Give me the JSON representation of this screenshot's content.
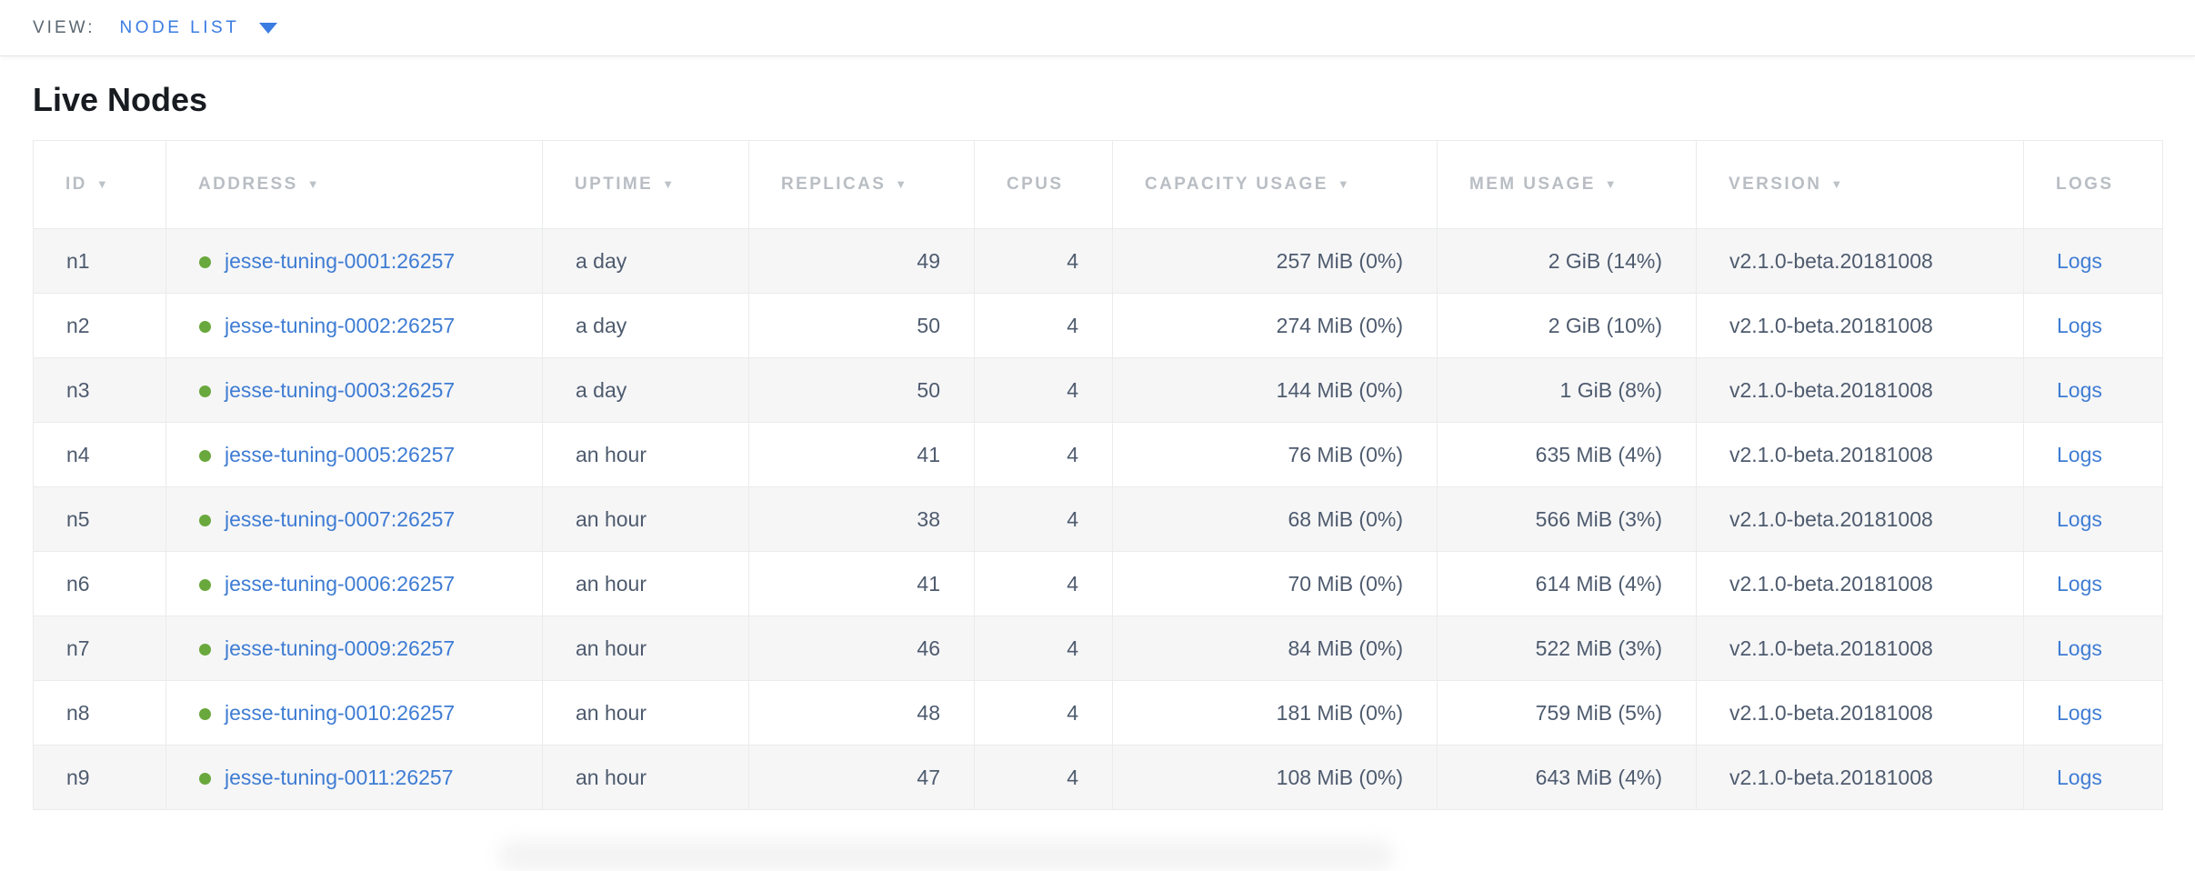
{
  "view_bar": {
    "label": "VIEW:",
    "selected_view": "NODE LIST"
  },
  "page": {
    "heading": "Live Nodes"
  },
  "colors": {
    "accent_blue": "#3a7ce2",
    "link_blue": "#3e7cd3",
    "live_dot_green": "#69a83c",
    "header_text": "#b9bec4",
    "cell_text": "#4e5b6e",
    "row_stripe": "#f6f6f7"
  },
  "icons": {
    "sort_desc": "▼",
    "dropdown_caret": "▼",
    "live_status_dot": "●"
  },
  "table": {
    "logs_label": "Logs",
    "columns": [
      {
        "key": "id",
        "label": "ID",
        "sortable": true,
        "align": "left"
      },
      {
        "key": "address",
        "label": "ADDRESS",
        "sortable": true,
        "align": "left"
      },
      {
        "key": "uptime",
        "label": "UPTIME",
        "sortable": true,
        "align": "left"
      },
      {
        "key": "replicas",
        "label": "REPLICAS",
        "sortable": true,
        "align": "right"
      },
      {
        "key": "cpus",
        "label": "CPUS",
        "sortable": false,
        "align": "right"
      },
      {
        "key": "capacity",
        "label": "CAPACITY USAGE",
        "sortable": true,
        "align": "right"
      },
      {
        "key": "mem",
        "label": "MEM USAGE",
        "sortable": true,
        "align": "right"
      },
      {
        "key": "version",
        "label": "VERSION",
        "sortable": true,
        "align": "left"
      },
      {
        "key": "logs",
        "label": "LOGS",
        "sortable": false,
        "align": "left"
      }
    ],
    "rows": [
      {
        "id": "n1",
        "status": "live",
        "address": "jesse-tuning-0001:26257",
        "uptime": "a day",
        "replicas": "49",
        "cpus": "4",
        "capacity": "257 MiB (0%)",
        "mem": "2 GiB (14%)",
        "version": "v2.1.0-beta.20181008"
      },
      {
        "id": "n2",
        "status": "live",
        "address": "jesse-tuning-0002:26257",
        "uptime": "a day",
        "replicas": "50",
        "cpus": "4",
        "capacity": "274 MiB (0%)",
        "mem": "2 GiB (10%)",
        "version": "v2.1.0-beta.20181008"
      },
      {
        "id": "n3",
        "status": "live",
        "address": "jesse-tuning-0003:26257",
        "uptime": "a day",
        "replicas": "50",
        "cpus": "4",
        "capacity": "144 MiB (0%)",
        "mem": "1 GiB (8%)",
        "version": "v2.1.0-beta.20181008"
      },
      {
        "id": "n4",
        "status": "live",
        "address": "jesse-tuning-0005:26257",
        "uptime": "an hour",
        "replicas": "41",
        "cpus": "4",
        "capacity": "76 MiB (0%)",
        "mem": "635 MiB (4%)",
        "version": "v2.1.0-beta.20181008"
      },
      {
        "id": "n5",
        "status": "live",
        "address": "jesse-tuning-0007:26257",
        "uptime": "an hour",
        "replicas": "38",
        "cpus": "4",
        "capacity": "68 MiB (0%)",
        "mem": "566 MiB (3%)",
        "version": "v2.1.0-beta.20181008"
      },
      {
        "id": "n6",
        "status": "live",
        "address": "jesse-tuning-0006:26257",
        "uptime": "an hour",
        "replicas": "41",
        "cpus": "4",
        "capacity": "70 MiB (0%)",
        "mem": "614 MiB (4%)",
        "version": "v2.1.0-beta.20181008"
      },
      {
        "id": "n7",
        "status": "live",
        "address": "jesse-tuning-0009:26257",
        "uptime": "an hour",
        "replicas": "46",
        "cpus": "4",
        "capacity": "84 MiB (0%)",
        "mem": "522 MiB (3%)",
        "version": "v2.1.0-beta.20181008"
      },
      {
        "id": "n8",
        "status": "live",
        "address": "jesse-tuning-0010:26257",
        "uptime": "an hour",
        "replicas": "48",
        "cpus": "4",
        "capacity": "181 MiB (0%)",
        "mem": "759 MiB (5%)",
        "version": "v2.1.0-beta.20181008"
      },
      {
        "id": "n9",
        "status": "live",
        "address": "jesse-tuning-0011:26257",
        "uptime": "an hour",
        "replicas": "47",
        "cpus": "4",
        "capacity": "108 MiB (0%)",
        "mem": "643 MiB (4%)",
        "version": "v2.1.0-beta.20181008"
      }
    ]
  }
}
